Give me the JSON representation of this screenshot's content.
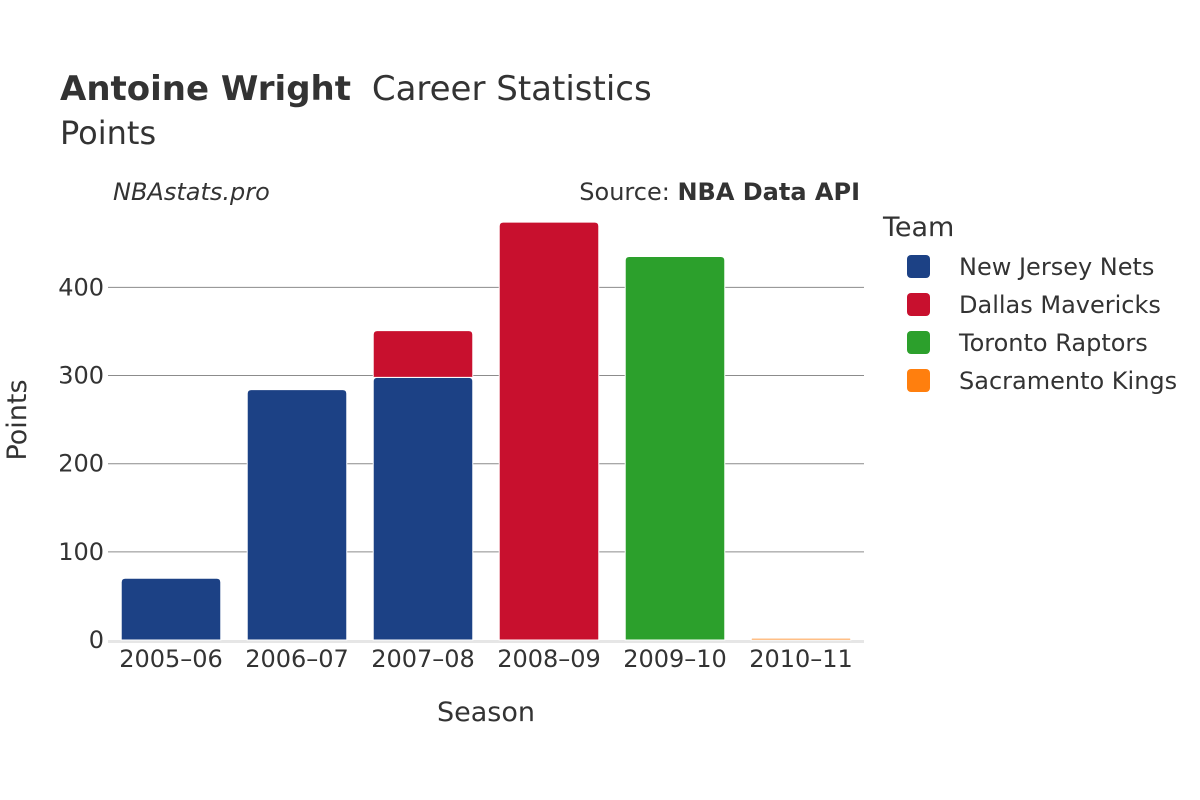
{
  "title": {
    "player": "Antoine Wright",
    "rest": "Career Statistics",
    "subtitle": "Points"
  },
  "watermark": "NBAstats.pro",
  "source": {
    "prefix": "Source: ",
    "name": "NBA Data API"
  },
  "legend": {
    "title": "Team"
  },
  "chart_data": {
    "type": "bar",
    "stacked": true,
    "categories": [
      "2005–06",
      "2006–07",
      "2007–08",
      "2008–09",
      "2009–10",
      "2010–11"
    ],
    "series": [
      {
        "name": "New Jersey Nets",
        "color": "#1c4185",
        "values": [
          70,
          284,
          298,
          0,
          0,
          0
        ]
      },
      {
        "name": "Dallas Mavericks",
        "color": "#c8102e",
        "values": [
          0,
          0,
          53,
          474,
          0,
          0
        ]
      },
      {
        "name": "Toronto Raptors",
        "color": "#2ca02c",
        "values": [
          0,
          0,
          0,
          0,
          435,
          0
        ]
      },
      {
        "name": "Sacramento Kings",
        "color": "#ff7f0e",
        "values": [
          0,
          0,
          0,
          0,
          0,
          2
        ]
      }
    ],
    "xlabel": "Season",
    "ylabel": "Points",
    "ylim": [
      0,
      475
    ],
    "yticks": [
      0,
      100,
      200,
      300,
      400
    ],
    "grid": true,
    "legend_position": "right"
  }
}
